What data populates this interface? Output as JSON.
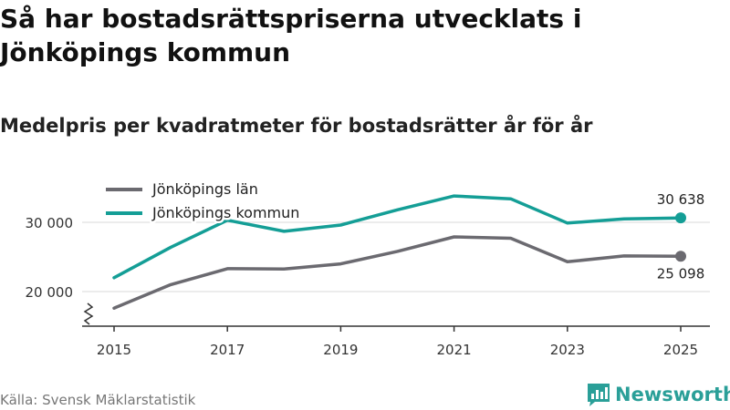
{
  "title": "Så har bostadsrättspriserna utvecklats i Jönköpings kommun",
  "subtitle": "Medelpris per kvadratmeter för bostadsrätter år för år",
  "source": "Källa: Svensk Mäklarstatistik",
  "brand": {
    "name": "Newsworthy",
    "color": "#2a9f98"
  },
  "chart_data": {
    "type": "line",
    "x": [
      2015,
      2016,
      2017,
      2018,
      2019,
      2020,
      2021,
      2022,
      2023,
      2024,
      2025
    ],
    "xticks": [
      "2015",
      "2017",
      "2019",
      "2021",
      "2023",
      "2025"
    ],
    "yticks": [
      {
        "value": 20000,
        "label": "20 000"
      },
      {
        "value": 30000,
        "label": "30 000"
      }
    ],
    "ylim": [
      15000,
      36000
    ],
    "series": [
      {
        "name": "Jönköpings län",
        "color": "#6b6a70",
        "values": [
          17600,
          21000,
          23300,
          23250,
          24000,
          25800,
          27900,
          27700,
          24300,
          25150,
          25098
        ],
        "end_label": "25 098"
      },
      {
        "name": "Jönköpings kommun",
        "color": "#149e96",
        "values": [
          22000,
          26400,
          30300,
          28700,
          29600,
          31800,
          33800,
          33400,
          29900,
          30500,
          30638
        ],
        "end_label": "30 638"
      }
    ]
  }
}
